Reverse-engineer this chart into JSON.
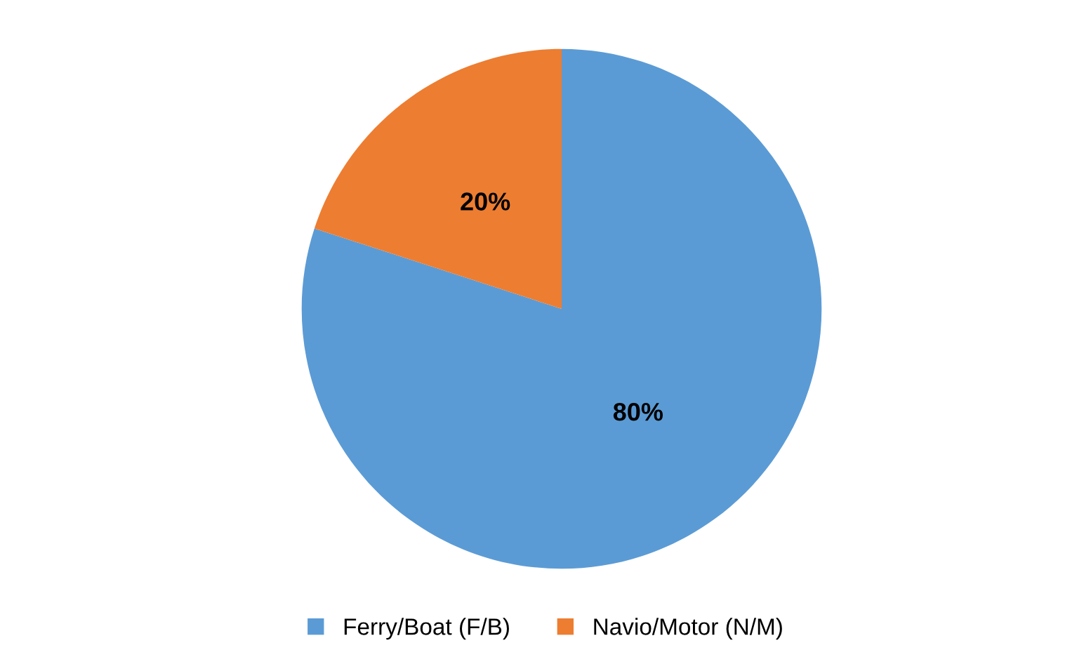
{
  "chart_data": {
    "type": "pie",
    "categories": [
      "Ferry/Boat (F/B)",
      "Navio/Motor (N/M)"
    ],
    "values": [
      80,
      20
    ],
    "colors": [
      "#5b9bd5",
      "#ed7d31"
    ],
    "value_labels": [
      "80%",
      "20%"
    ],
    "legend": "bottom"
  }
}
